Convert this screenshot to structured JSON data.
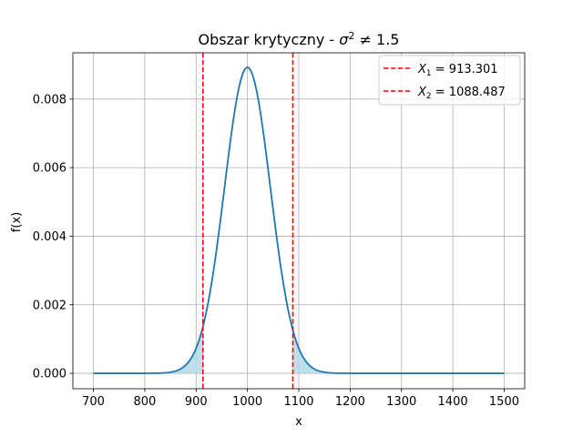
{
  "chart_data": {
    "type": "line",
    "title_prefix": "Obszar krytyczny - ",
    "title_sigma": "σ",
    "title_sup": "2",
    "title_suffix": " ≠  1.5",
    "xlabel": "x",
    "ylabel": "f(x)",
    "xlim": [
      660,
      1540
    ],
    "ylim": [
      -0.00045,
      0.00935
    ],
    "xticks": [
      700,
      800,
      900,
      1000,
      1100,
      1200,
      1300,
      1400,
      1500
    ],
    "xtick_labels": [
      "700",
      "800",
      "900",
      "1000",
      "1100",
      "1200",
      "1300",
      "1400",
      "1500"
    ],
    "yticks": [
      0.0,
      0.002,
      0.004,
      0.006,
      0.008
    ],
    "ytick_labels": [
      "0.000",
      "0.002",
      "0.004",
      "0.006",
      "0.008"
    ],
    "grid": true,
    "legend_position": "top-right",
    "curve": {
      "distribution": "normal",
      "mean": 1000,
      "sd": 44.7,
      "x_range": [
        700,
        1500
      ],
      "color": "#1f77b4"
    },
    "critical_lines": [
      {
        "value": 913.301,
        "color": "#ff0000",
        "legend_var": "X",
        "legend_sub": "1",
        "legend_value": " = 913.301"
      },
      {
        "value": 1088.487,
        "color": "#ff0000",
        "legend_var": "X",
        "legend_sub": "2",
        "legend_value": " = 1088.487"
      }
    ],
    "shaded_regions": [
      {
        "from": 700,
        "to": 913.301
      },
      {
        "from": 1088.487,
        "to": 1500
      }
    ],
    "shade_color": "#add8e6"
  }
}
